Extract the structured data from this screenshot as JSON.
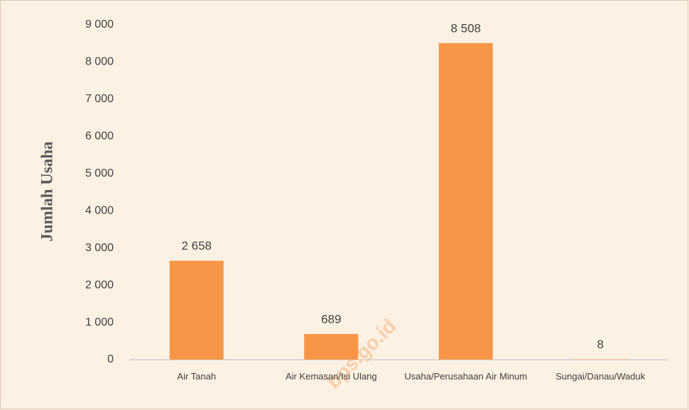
{
  "chart_data": {
    "type": "bar",
    "y_label": "Jumlah Usaha",
    "watermark": "bps.go.id",
    "categories": [
      "Air Tanah",
      "Air Kemasan/Isi Ulang",
      "Usaha/Perusahaan Air Minum",
      "Sungai/Danau/Waduk"
    ],
    "values": [
      2658,
      689,
      8508,
      8
    ],
    "value_labels": [
      "2 658",
      "689",
      "8 508",
      "8"
    ],
    "color": "#f79646",
    "ylim": [
      0,
      9000
    ],
    "yticks": [
      0,
      {
        "value": 1000,
        "label": "1 000"
      },
      {
        "value": 2000,
        "label": "2 000"
      },
      {
        "value": 3000,
        "label": "3 000"
      },
      {
        "value": 4000,
        "label": "4 000"
      },
      {
        "value": 5000,
        "label": "5 000"
      },
      {
        "value": 6000,
        "label": "6 000"
      },
      {
        "value": 7000,
        "label": "7 000"
      },
      {
        "value": 8000,
        "label": "8 000"
      },
      {
        "value": 9000,
        "label": "9 000"
      }
    ],
    "grid": false
  }
}
